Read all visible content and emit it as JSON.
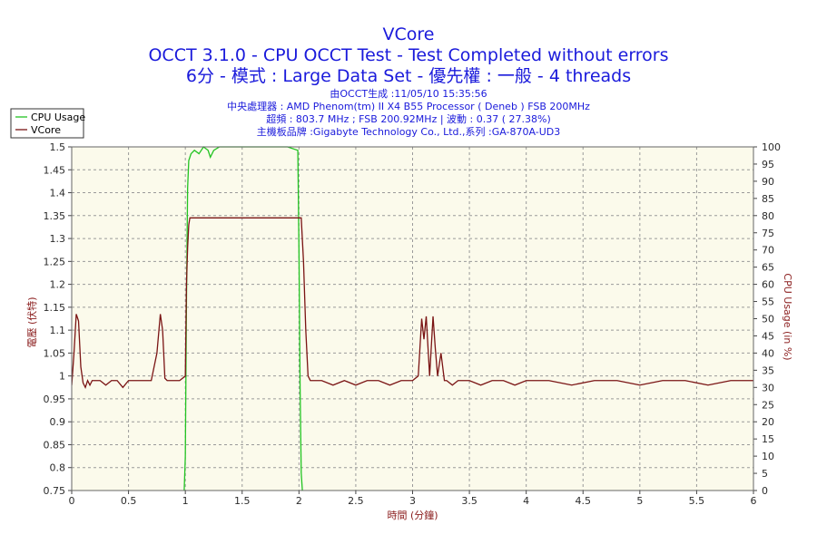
{
  "title": {
    "line1": "VCore",
    "line2": "OCCT 3.1.0 - CPU OCCT Test - Test Completed without errors",
    "line3": "6分 - 模式 : Large Data Set - 優先權 : 一般 - 4 threads"
  },
  "info": {
    "line1": "由OCCT生成 :11/05/10 15:35:56",
    "line2": "中央處理器 : AMD Phenom(tm) II X4 B55 Processor ( Deneb ) FSB 200MHz",
    "line3": "超頻 : 803.7 MHz ; FSB 200.92MHz | 波動 : 0.37 ( 27.38%)",
    "line4": "主機板品牌 :Gigabyte Technology Co., Ltd.,系列 :GA-870A-UD3"
  },
  "colors": {
    "plot_bg": "#fbfaeb",
    "grid": "#9a9a9a",
    "cpu_usage": "#22c322",
    "vcore": "#7a1414",
    "title": "#1a1adb"
  },
  "chart_data": {
    "type": "line",
    "xlabel": "時間 (分鐘)",
    "ylabel": "電壓 (伏特)",
    "y2label": "CPU Usage (in %)",
    "xlim": [
      0,
      6
    ],
    "ylim": [
      0.75,
      1.5
    ],
    "y2lim": [
      0,
      100
    ],
    "x_ticks": [
      "0",
      "0.5",
      "1",
      "1.5",
      "2",
      "2.5",
      "3",
      "3.5",
      "4",
      "4.5",
      "5",
      "5.5",
      "6"
    ],
    "y_ticks": [
      "0.75",
      "0.8",
      "0.85",
      "0.9",
      "0.95",
      "1",
      "1.05",
      "1.1",
      "1.15",
      "1.2",
      "1.25",
      "1.3",
      "1.35",
      "1.4",
      "1.45",
      "1.5"
    ],
    "y2_ticks": [
      "0",
      "5",
      "10",
      "15",
      "20",
      "25",
      "30",
      "35",
      "40",
      "45",
      "50",
      "55",
      "60",
      "65",
      "70",
      "75",
      "80",
      "85",
      "90",
      "95",
      "100"
    ],
    "grid": true,
    "legend": {
      "placement": "top-left"
    },
    "series": [
      {
        "name": "CPU Usage",
        "axis": "right",
        "x": [
          0.99,
          1.0,
          1.01,
          1.02,
          1.03,
          1.04,
          1.05,
          1.08,
          1.12,
          1.16,
          1.2,
          1.22,
          1.25,
          1.3,
          1.4,
          1.5,
          1.6,
          1.7,
          1.8,
          1.9,
          1.99,
          2.0,
          2.01,
          2.02,
          2.03
        ],
        "values": [
          0,
          10,
          55,
          88,
          96,
          97,
          98,
          99,
          98,
          100,
          99,
          97,
          99,
          100,
          100,
          100,
          100,
          100,
          100,
          100,
          99,
          70,
          30,
          5,
          0
        ]
      },
      {
        "name": "VCore",
        "axis": "left",
        "x": [
          0.0,
          0.02,
          0.04,
          0.06,
          0.08,
          0.1,
          0.12,
          0.14,
          0.16,
          0.18,
          0.2,
          0.25,
          0.3,
          0.35,
          0.4,
          0.45,
          0.5,
          0.55,
          0.6,
          0.65,
          0.7,
          0.75,
          0.78,
          0.8,
          0.82,
          0.84,
          0.86,
          0.9,
          0.95,
          1.0,
          1.01,
          1.02,
          1.03,
          1.04,
          1.05,
          1.1,
          1.3,
          1.5,
          1.7,
          1.9,
          2.0,
          2.02,
          2.04,
          2.06,
          2.08,
          2.1,
          2.2,
          2.3,
          2.4,
          2.5,
          2.6,
          2.7,
          2.8,
          2.9,
          3.0,
          3.05,
          3.08,
          3.1,
          3.12,
          3.15,
          3.18,
          3.2,
          3.22,
          3.25,
          3.28,
          3.3,
          3.35,
          3.4,
          3.5,
          3.6,
          3.7,
          3.8,
          3.9,
          4.0,
          4.2,
          4.4,
          4.6,
          4.8,
          5.0,
          5.2,
          5.4,
          5.6,
          5.8,
          6.0
        ],
        "values": [
          0.98,
          1.05,
          1.135,
          1.12,
          1.02,
          0.985,
          0.975,
          0.99,
          0.98,
          0.99,
          0.99,
          0.99,
          0.98,
          0.99,
          0.99,
          0.975,
          0.99,
          0.99,
          0.99,
          0.99,
          0.99,
          1.05,
          1.135,
          1.1,
          0.995,
          0.99,
          0.99,
          0.99,
          0.99,
          1.0,
          1.2,
          1.28,
          1.33,
          1.345,
          1.345,
          1.345,
          1.345,
          1.345,
          1.345,
          1.345,
          1.345,
          1.345,
          1.25,
          1.1,
          1.0,
          0.99,
          0.99,
          0.98,
          0.99,
          0.98,
          0.99,
          0.99,
          0.98,
          0.99,
          0.99,
          1.0,
          1.125,
          1.08,
          1.13,
          1.0,
          1.13,
          1.06,
          1.0,
          1.05,
          0.99,
          0.99,
          0.98,
          0.99,
          0.99,
          0.98,
          0.99,
          0.99,
          0.98,
          0.99,
          0.99,
          0.98,
          0.99,
          0.99,
          0.98,
          0.99,
          0.99,
          0.98,
          0.99,
          0.99
        ]
      }
    ]
  }
}
